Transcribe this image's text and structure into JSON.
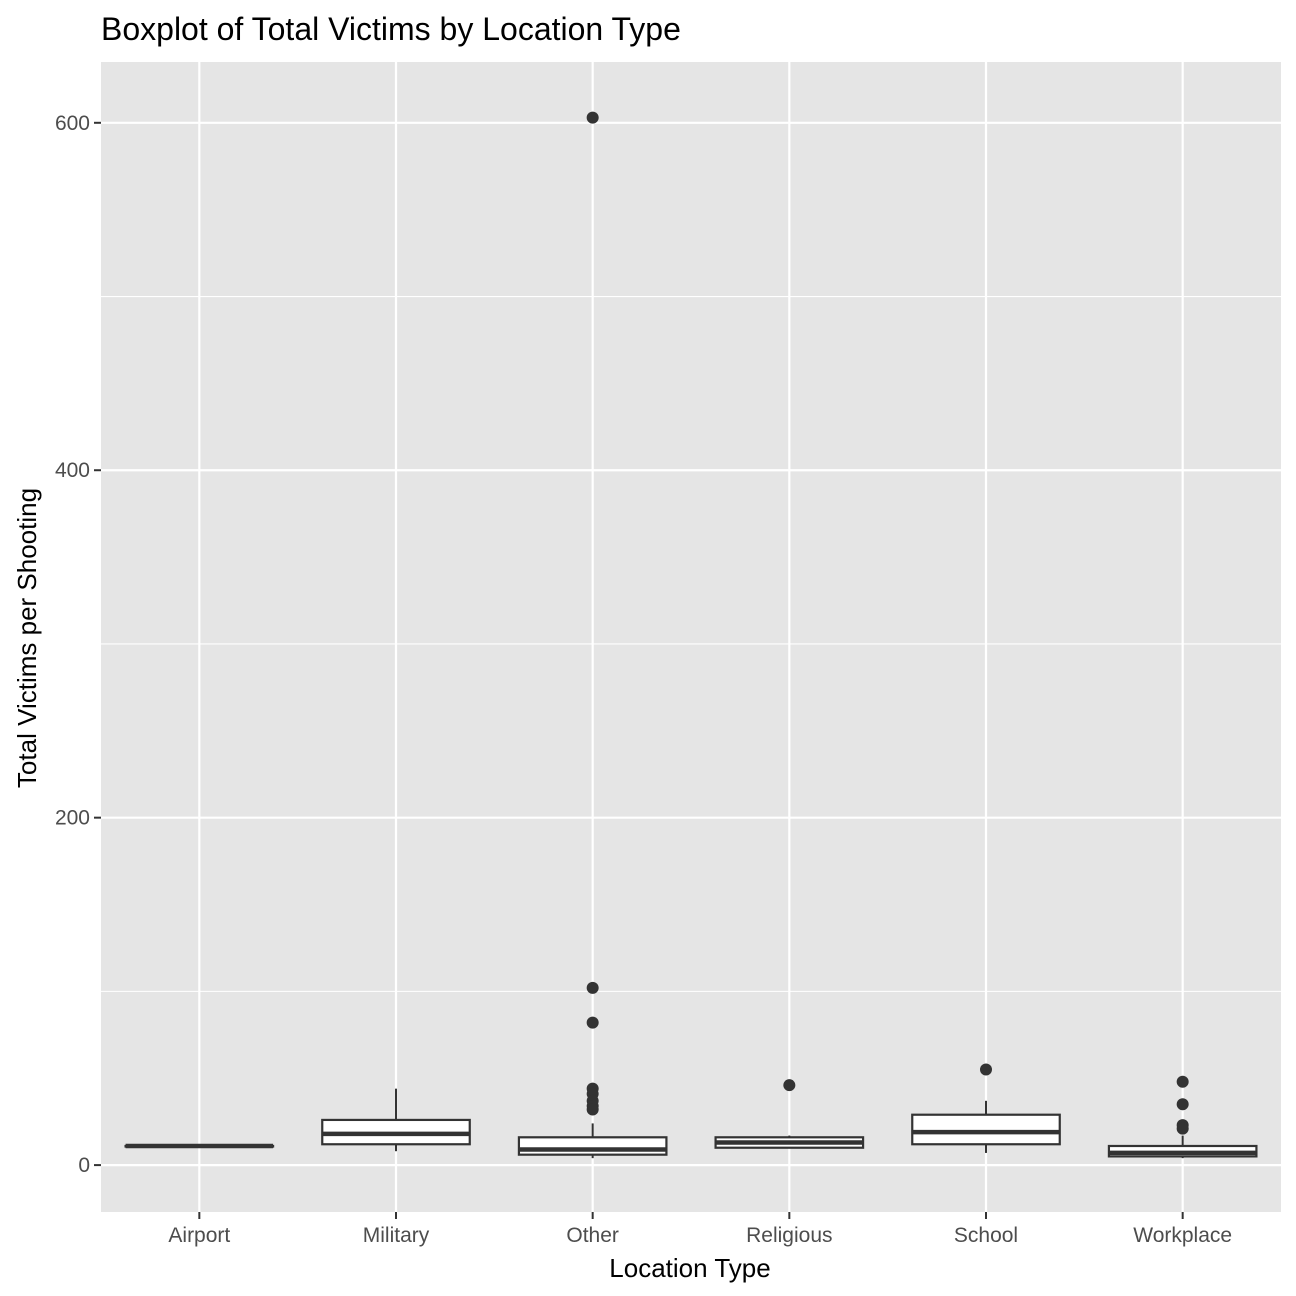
{
  "chart_data": {
    "type": "boxplot",
    "title": "Boxplot of Total Victims by Location Type",
    "xlabel": "Location Type",
    "ylabel": "Total Victims per Shooting",
    "ylim": [
      -27,
      635
    ],
    "yticks": [
      0,
      200,
      400,
      600
    ],
    "grid": true,
    "legend": "none",
    "colors": {
      "panel_background": "#e5e5e5",
      "grid_line": "#ffffff",
      "box_fill": "#ffffff",
      "box_line": "#333333",
      "outlier": "#333333",
      "tick_label": "#4d4d4d"
    },
    "categories": [
      "Airport",
      "Military",
      "Other",
      "Religious",
      "School",
      "Workplace"
    ],
    "boxes": [
      {
        "category": "Airport",
        "low": 11,
        "q1": 11,
        "median": 11,
        "q3": 11,
        "high": 11,
        "outliers": []
      },
      {
        "category": "Military",
        "low": 8,
        "q1": 12,
        "median": 18,
        "q3": 26,
        "high": 44,
        "outliers": []
      },
      {
        "category": "Other",
        "low": 4,
        "q1": 6,
        "median": 9,
        "q3": 16,
        "high": 24,
        "outliers": [
          603,
          102,
          82,
          44,
          41,
          37,
          34,
          32
        ]
      },
      {
        "category": "Religious",
        "low": 10,
        "q1": 10,
        "median": 13,
        "q3": 16,
        "high": 17,
        "outliers": [
          46
        ]
      },
      {
        "category": "School",
        "low": 7,
        "q1": 12,
        "median": 19,
        "q3": 29,
        "high": 37,
        "outliers": [
          55
        ]
      },
      {
        "category": "Workplace",
        "low": 4,
        "q1": 5,
        "median": 7,
        "q3": 11,
        "high": 17,
        "outliers": [
          48,
          35,
          23,
          21
        ]
      }
    ]
  }
}
